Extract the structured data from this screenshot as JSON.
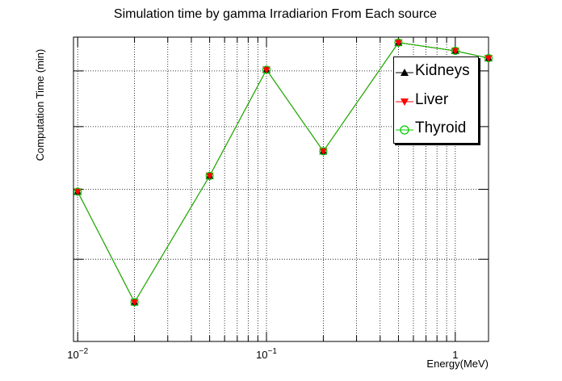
{
  "chart_data": {
    "type": "line",
    "title": "Simulation time by gamma Irradiarion From Each source",
    "xlabel": "Energy(MeV)",
    "ylabel": "Computation Time (min)",
    "xscale": "log",
    "xlim": [
      0.0095,
      1.5
    ],
    "ylim": [
      0,
      1
    ],
    "grid": true,
    "legend_position": "top-right",
    "x_tick_labels": [
      {
        "value": 0.01,
        "base": "10",
        "exp": "−2"
      },
      {
        "value": 0.1,
        "base": "10",
        "exp": "−1"
      },
      {
        "value": 1,
        "base": "1",
        "exp": ""
      }
    ],
    "x": [
      0.01,
      0.02,
      0.05,
      0.1,
      0.2,
      0.5,
      1.0,
      1.5
    ],
    "series": [
      {
        "name": "Kidneys",
        "color": "#000000",
        "marker": "triangle-up",
        "values": [
          0.492,
          0.129,
          0.544,
          0.893,
          0.625,
          0.982,
          0.955,
          0.931
        ]
      },
      {
        "name": "Liver",
        "color": "#ff0000",
        "marker": "triangle-down",
        "values": [
          0.492,
          0.129,
          0.544,
          0.893,
          0.625,
          0.982,
          0.955,
          0.931
        ]
      },
      {
        "name": "Thyroid",
        "color": "#00cc00",
        "marker": "circle-open",
        "values": [
          0.492,
          0.129,
          0.544,
          0.893,
          0.625,
          0.982,
          0.955,
          0.931
        ]
      }
    ]
  }
}
